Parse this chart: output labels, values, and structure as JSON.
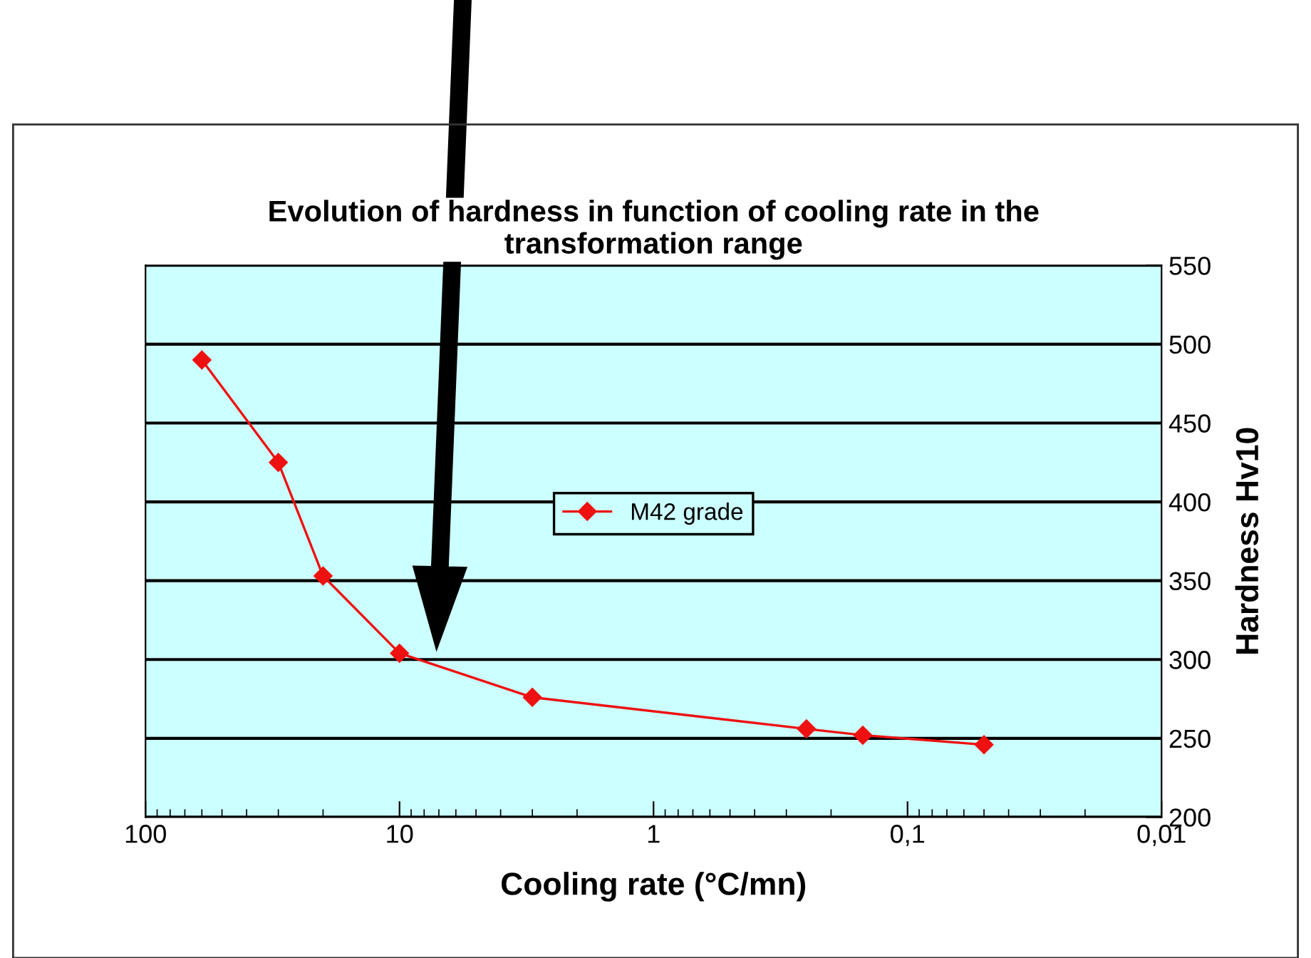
{
  "chart_data": {
    "type": "line",
    "title": "Evolution of hardness in function of cooling rate in the\ntransformation range",
    "xlabel": "Cooling rate (°C/mn)",
    "ylabel": "Hardness Hv10",
    "x": [
      60,
      30,
      20,
      10,
      3,
      0.25,
      0.15,
      0.05
    ],
    "series": [
      {
        "name": "M42 grade",
        "color": "#ee1111",
        "values": [
          490,
          425,
          353,
          304,
          276,
          256,
          252,
          246
        ]
      }
    ],
    "log": "x",
    "xlim": [
      100,
      0.01
    ],
    "xticks": [
      100,
      10,
      1,
      {
        "value": 0.1,
        "label": "0,1"
      },
      {
        "value": 0.01,
        "label": "0,01"
      }
    ],
    "ylim": [
      200,
      550
    ],
    "yticks": [
      200,
      250,
      300,
      350,
      400,
      450,
      500,
      550
    ],
    "grid": "y",
    "legend": "center",
    "marker": "diamond",
    "line_style": "solid"
  }
}
